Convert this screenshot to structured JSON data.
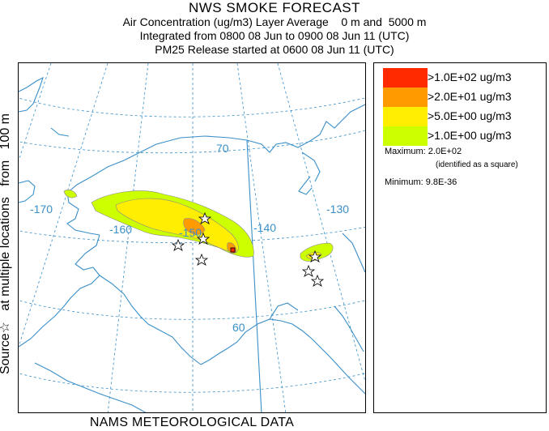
{
  "header": {
    "title": "NWS SMOKE FORECAST",
    "line2": "Air Concentration (ug/m3) Layer Average    0 m and  5000 m",
    "line3": "Integrated from 0800 08 Jun to 0900 08 Jun 11 (UTC)",
    "line4": "PM25 Release started at 0600 08 Jun 11 (UTC)"
  },
  "side_label": "Source☆   at multiple locations   from   100 m",
  "bottom_label": "NAMS METEOROLOGICAL DATA",
  "map": {
    "longitude_labels": [
      "-170",
      "-160",
      "-150",
      "-140",
      "-130"
    ],
    "latitude_labels": [
      "70",
      "60"
    ],
    "graticule_color": "#3a8fc8",
    "coastline_color": "#3a8fc8"
  },
  "legend": {
    "entries": [
      {
        "label": ">1.0E+02 ug/m3",
        "color": "#ff2a00"
      },
      {
        "label": ">2.0E+01 ug/m3",
        "color": "#ff9a00"
      },
      {
        "label": ">5.0E+00 ug/m3",
        "color": "#ffee00"
      },
      {
        "label": ">1.0E+00 ug/m3",
        "color": "#ccff00"
      }
    ],
    "maximum": "Maximum: 2.0E+02",
    "maximum_note": "(identified as a square)",
    "minimum": "Minimum: 9.8E-36"
  }
}
